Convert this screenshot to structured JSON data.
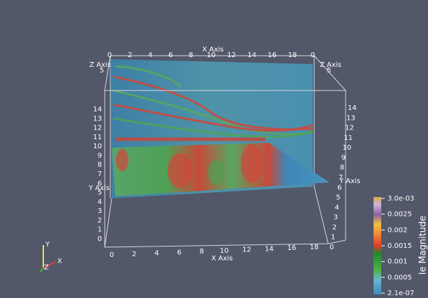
{
  "x_axis_top": {
    "title": "X Axis",
    "ticks": [
      "0",
      "2",
      "4",
      "6",
      "8",
      "10",
      "12",
      "14",
      "16",
      "18",
      "0"
    ]
  },
  "x_axis_bottom": {
    "title": "X Axis",
    "ticks": [
      "0",
      "2",
      "4",
      "6",
      "8",
      "10",
      "12",
      "14",
      "16",
      "18"
    ]
  },
  "z_axis_left": {
    "title": "Z Axis",
    "ticks": [
      "5"
    ]
  },
  "z_axis_right": {
    "title": "Z Axis",
    "ticks": [
      "5"
    ]
  },
  "y_axis_left": {
    "title": "Y Axis",
    "ticks": [
      "14",
      "13",
      "12",
      "11",
      "10",
      "9",
      "8",
      "7",
      "6",
      "5",
      "4",
      "3",
      "2",
      "1",
      "0"
    ]
  },
  "y_axis_right": {
    "title": "Y Axis",
    "ticks": [
      "14",
      "13",
      "12",
      "11",
      "10",
      "9",
      "8",
      "7",
      "6",
      "5",
      "4",
      "3",
      "2",
      "1",
      "0"
    ]
  },
  "colorbar": {
    "title": "le Magnitude",
    "labels": [
      "3.0e-03",
      "0.0025",
      "0.002",
      "0.0015",
      "0.001",
      "0.0005",
      "2.1e-07"
    ]
  },
  "orientation": {
    "x": "X",
    "y": "Y",
    "z": "Z"
  }
}
